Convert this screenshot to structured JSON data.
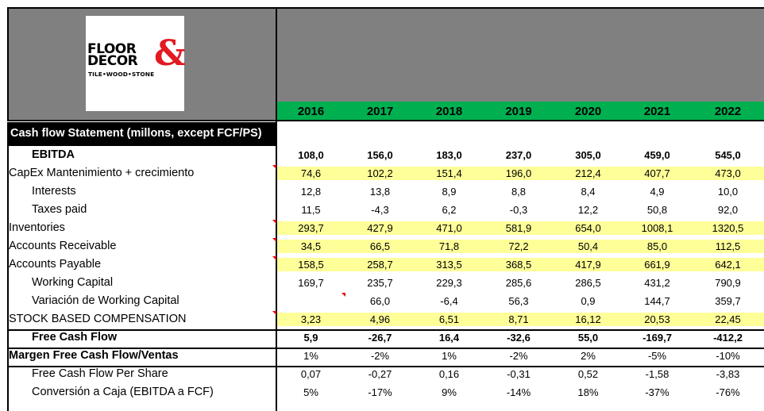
{
  "logo": {
    "line1": "FLOOR",
    "line2": "DECOR",
    "ampersand": "&",
    "tagline": "TILE•WOOD•STONE",
    "brand_color": "#e21a22"
  },
  "colors": {
    "header_gray": "#808080",
    "year_green": "#00b050",
    "highlight_yellow": "#ffff99",
    "title_black": "#000000"
  },
  "years": [
    "2016",
    "2017",
    "2018",
    "2019",
    "2020",
    "2021",
    "2022"
  ],
  "table_title": "Cash flow Statement (millons, except FCF/PS)",
  "rows": [
    {
      "label": "EBITDA",
      "values": [
        "108,0",
        "156,0",
        "183,0",
        "237,0",
        "305,0",
        "459,0",
        "545,0"
      ]
    },
    {
      "label": "CapEx Mantenimiento + crecimiento",
      "values": [
        "74,6",
        "102,2",
        "151,4",
        "196,0",
        "212,4",
        "407,7",
        "473,0"
      ]
    },
    {
      "label": "Interests",
      "values": [
        "12,8",
        "13,8",
        "8,9",
        "8,8",
        "8,4",
        "4,9",
        "10,0"
      ]
    },
    {
      "label": "Taxes paid",
      "values": [
        "11,5",
        "-4,3",
        "6,2",
        "-0,3",
        "12,2",
        "50,8",
        "92,0"
      ]
    },
    {
      "label": "Inventories",
      "values": [
        "293,7",
        "427,9",
        "471,0",
        "581,9",
        "654,0",
        "1008,1",
        "1320,5"
      ]
    },
    {
      "label": "Accounts Receivable",
      "values": [
        "34,5",
        "66,5",
        "71,8",
        "72,2",
        "50,4",
        "85,0",
        "112,5"
      ]
    },
    {
      "label": "Accounts Payable",
      "values": [
        "158,5",
        "258,7",
        "313,5",
        "368,5",
        "417,9",
        "661,9",
        "642,1"
      ]
    },
    {
      "label": "Working Capital",
      "values": [
        "169,7",
        "235,7",
        "229,3",
        "285,6",
        "286,5",
        "431,2",
        "790,9"
      ]
    },
    {
      "label": "Variación de Working Capital",
      "values": [
        "",
        "66,0",
        "-6,4",
        "56,3",
        "0,9",
        "144,7",
        "359,7"
      ]
    },
    {
      "label": "STOCK BASED COMPENSATION",
      "values": [
        "3,23",
        "4,96",
        "6,51",
        "8,71",
        "16,12",
        "20,53",
        "22,45"
      ]
    },
    {
      "label": "Free Cash Flow",
      "values": [
        "5,9",
        "-26,7",
        "16,4",
        "-32,6",
        "55,0",
        "-169,7",
        "-412,2"
      ]
    },
    {
      "label": "Margen Free Cash Flow/Ventas",
      "values": [
        "1%",
        "-2%",
        "1%",
        "-2%",
        "2%",
        "-5%",
        "-10%"
      ]
    },
    {
      "label": "Free Cash Flow Per Share",
      "values": [
        "0,07",
        "-0,27",
        "0,16",
        "-0,31",
        "0,52",
        "-1,58",
        "-3,83"
      ]
    },
    {
      "label": "Conversión a Caja (EBITDA a FCF)",
      "values": [
        "5%",
        "-17%",
        "9%",
        "-14%",
        "18%",
        "-37%",
        "-76%"
      ]
    }
  ]
}
